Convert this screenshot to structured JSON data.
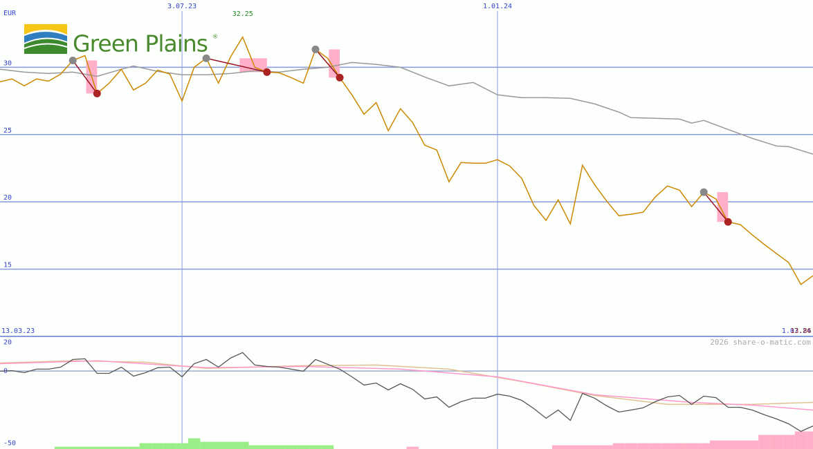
{
  "logo": {
    "name": "Green Plains",
    "mark": "®"
  },
  "watermark": "2026 share-o-matic.com",
  "chart_data": [
    {
      "type": "line",
      "unit": "EUR",
      "xlim": [
        0,
        67
      ],
      "xticks": [
        {
          "value": 15,
          "label": "3.07.23"
        },
        {
          "value": 41,
          "label": "1.01.24"
        }
      ],
      "range_labels": [
        {
          "value": 0,
          "label": "13.03.23"
        },
        {
          "value": 67,
          "label": "1.07.24"
        }
      ],
      "ylim": [
        10,
        35
      ],
      "yticks": [
        15,
        20,
        25,
        30
      ],
      "grid": true,
      "high_index": 20,
      "low_index": 66,
      "signals": [
        [
          6,
          8
        ],
        [
          17,
          22
        ],
        [
          26,
          28
        ],
        [
          58,
          60
        ]
      ],
      "signal_colors": {
        "start": "#888888",
        "end": "#aa2222",
        "line": "#991122",
        "box": "#ffb0c8"
      },
      "series": [
        {
          "color": "#cc8800",
          "values": [
            28.92,
            29.13,
            28.62,
            29.13,
            28.97,
            29.49,
            30.51,
            30.87,
            28.05,
            28.82,
            29.85,
            28.31,
            28.82,
            29.79,
            29.49,
            27.49,
            30.0,
            30.67,
            28.82,
            30.77,
            32.25,
            30.0,
            29.64,
            29.59,
            29.23,
            28.82,
            31.33,
            30.67,
            29.23,
            27.95,
            26.51,
            27.38,
            25.28,
            26.92,
            25.9,
            24.21,
            23.85,
            21.49,
            22.92,
            22.87,
            22.87,
            23.13,
            22.67,
            21.74,
            19.74,
            18.62,
            20.15,
            18.36,
            22.72,
            21.28,
            20.05,
            18.97,
            19.08,
            19.23,
            20.36,
            21.18,
            20.87,
            19.64,
            20.72,
            20.21,
            18.51,
            18.31,
            17.54,
            16.82,
            16.15,
            15.49,
            13.86,
            14.51
          ]
        },
        {
          "color": "#999999",
          "x": [
            0,
            2,
            4,
            6,
            8,
            10,
            11,
            13,
            15,
            17,
            19,
            21,
            23,
            25,
            27,
            29,
            31,
            33,
            35,
            37,
            39,
            41,
            43,
            45,
            47,
            49,
            51,
            52,
            54,
            56,
            57,
            58,
            60,
            62,
            64,
            65,
            67
          ],
          "values": [
            29.85,
            29.64,
            29.54,
            29.64,
            29.33,
            29.85,
            30.1,
            29.69,
            29.44,
            29.44,
            29.54,
            29.74,
            29.64,
            29.85,
            30.0,
            30.36,
            30.21,
            30.0,
            29.28,
            28.62,
            28.87,
            27.95,
            27.74,
            27.74,
            27.69,
            27.28,
            26.67,
            26.26,
            26.21,
            26.15,
            25.85,
            26.05,
            25.38,
            24.72,
            24.15,
            24.1,
            23.54
          ]
        }
      ]
    },
    {
      "type": "line",
      "xlim": [
        0,
        67
      ],
      "ylim": [
        -54,
        24
      ],
      "yticks": [
        20,
        0,
        -50
      ],
      "bars": [
        {
          "color": "#99ee88",
          "x": [
            5,
            6,
            7,
            8,
            9,
            10,
            11,
            12,
            13,
            14,
            15,
            16,
            17,
            18,
            19,
            20,
            21,
            22,
            23,
            24,
            25,
            26,
            27
          ],
          "values": [
            -52.4,
            -52.4,
            -52.4,
            -52.4,
            -52.4,
            -52.4,
            -52.4,
            -50.0,
            -50.0,
            -50.0,
            -50.0,
            -46.6,
            -49.0,
            -49.0,
            -49.0,
            -49.0,
            -51.4,
            -51.4,
            -51.4,
            -51.4,
            -51.4,
            -51.4,
            -51.4
          ]
        },
        {
          "color": "#ffb0c8",
          "x": [
            34,
            46,
            47,
            48,
            49,
            50,
            51,
            52,
            53,
            54,
            55,
            56,
            57,
            58,
            59,
            60,
            61,
            62,
            63,
            64,
            65,
            66,
            67
          ],
          "values": [
            -52.4,
            -51.4,
            -51.4,
            -51.4,
            -51.4,
            -51.4,
            -50.0,
            -50.0,
            -50.0,
            -50.0,
            -50.0,
            -50.0,
            -50.0,
            -50.0,
            -48.1,
            -48.1,
            -48.1,
            -48.1,
            -44.2,
            -44.2,
            -44.2,
            -41.8,
            -41.8
          ]
        }
      ],
      "series": [
        {
          "color": "#555555",
          "values": [
            -0.1,
            0.3,
            -1.1,
            1.3,
            1.3,
            2.7,
            8.0,
            8.5,
            -1.6,
            -1.6,
            2.7,
            -3.5,
            -1.1,
            2.3,
            2.7,
            -4.0,
            5.1,
            8.0,
            2.7,
            9.0,
            12.8,
            4.2,
            3.2,
            2.7,
            1.3,
            -0.1,
            8.0,
            4.7,
            1.3,
            -4.0,
            -9.7,
            -8.3,
            -13.1,
            -8.8,
            -12.6,
            -19.3,
            -17.9,
            -25.1,
            -21.2,
            -18.8,
            -18.8,
            -16.0,
            -17.4,
            -20.3,
            -26.0,
            -32.7,
            -27.0,
            -34.2,
            -15.5,
            -18.8,
            -24.1,
            -28.4,
            -27.0,
            -25.5,
            -21.2,
            -17.9,
            -16.9,
            -23.1,
            -17.4,
            -18.4,
            -25.1,
            -25.1,
            -27.0,
            -30.3,
            -33.2,
            -36.6,
            -41.8,
            -38.0
          ]
        },
        {
          "color": "#ff99cc",
          "x": [
            0,
            8,
            17,
            25,
            33,
            41,
            49,
            57,
            62,
            67
          ],
          "values": [
            5.1,
            7.1,
            2.3,
            3.2,
            1.3,
            -4.0,
            -16.4,
            -21.7,
            -23.6,
            -27.0
          ]
        },
        {
          "color": "#e0c090",
          "x": [
            0,
            6,
            12,
            17,
            25,
            31,
            37,
            43,
            49,
            55,
            62,
            67
          ],
          "values": [
            5.6,
            7.1,
            6.1,
            1.8,
            3.7,
            4.2,
            1.3,
            -7.3,
            -16.9,
            -23.1,
            -23.1,
            -21.7
          ]
        }
      ]
    }
  ]
}
